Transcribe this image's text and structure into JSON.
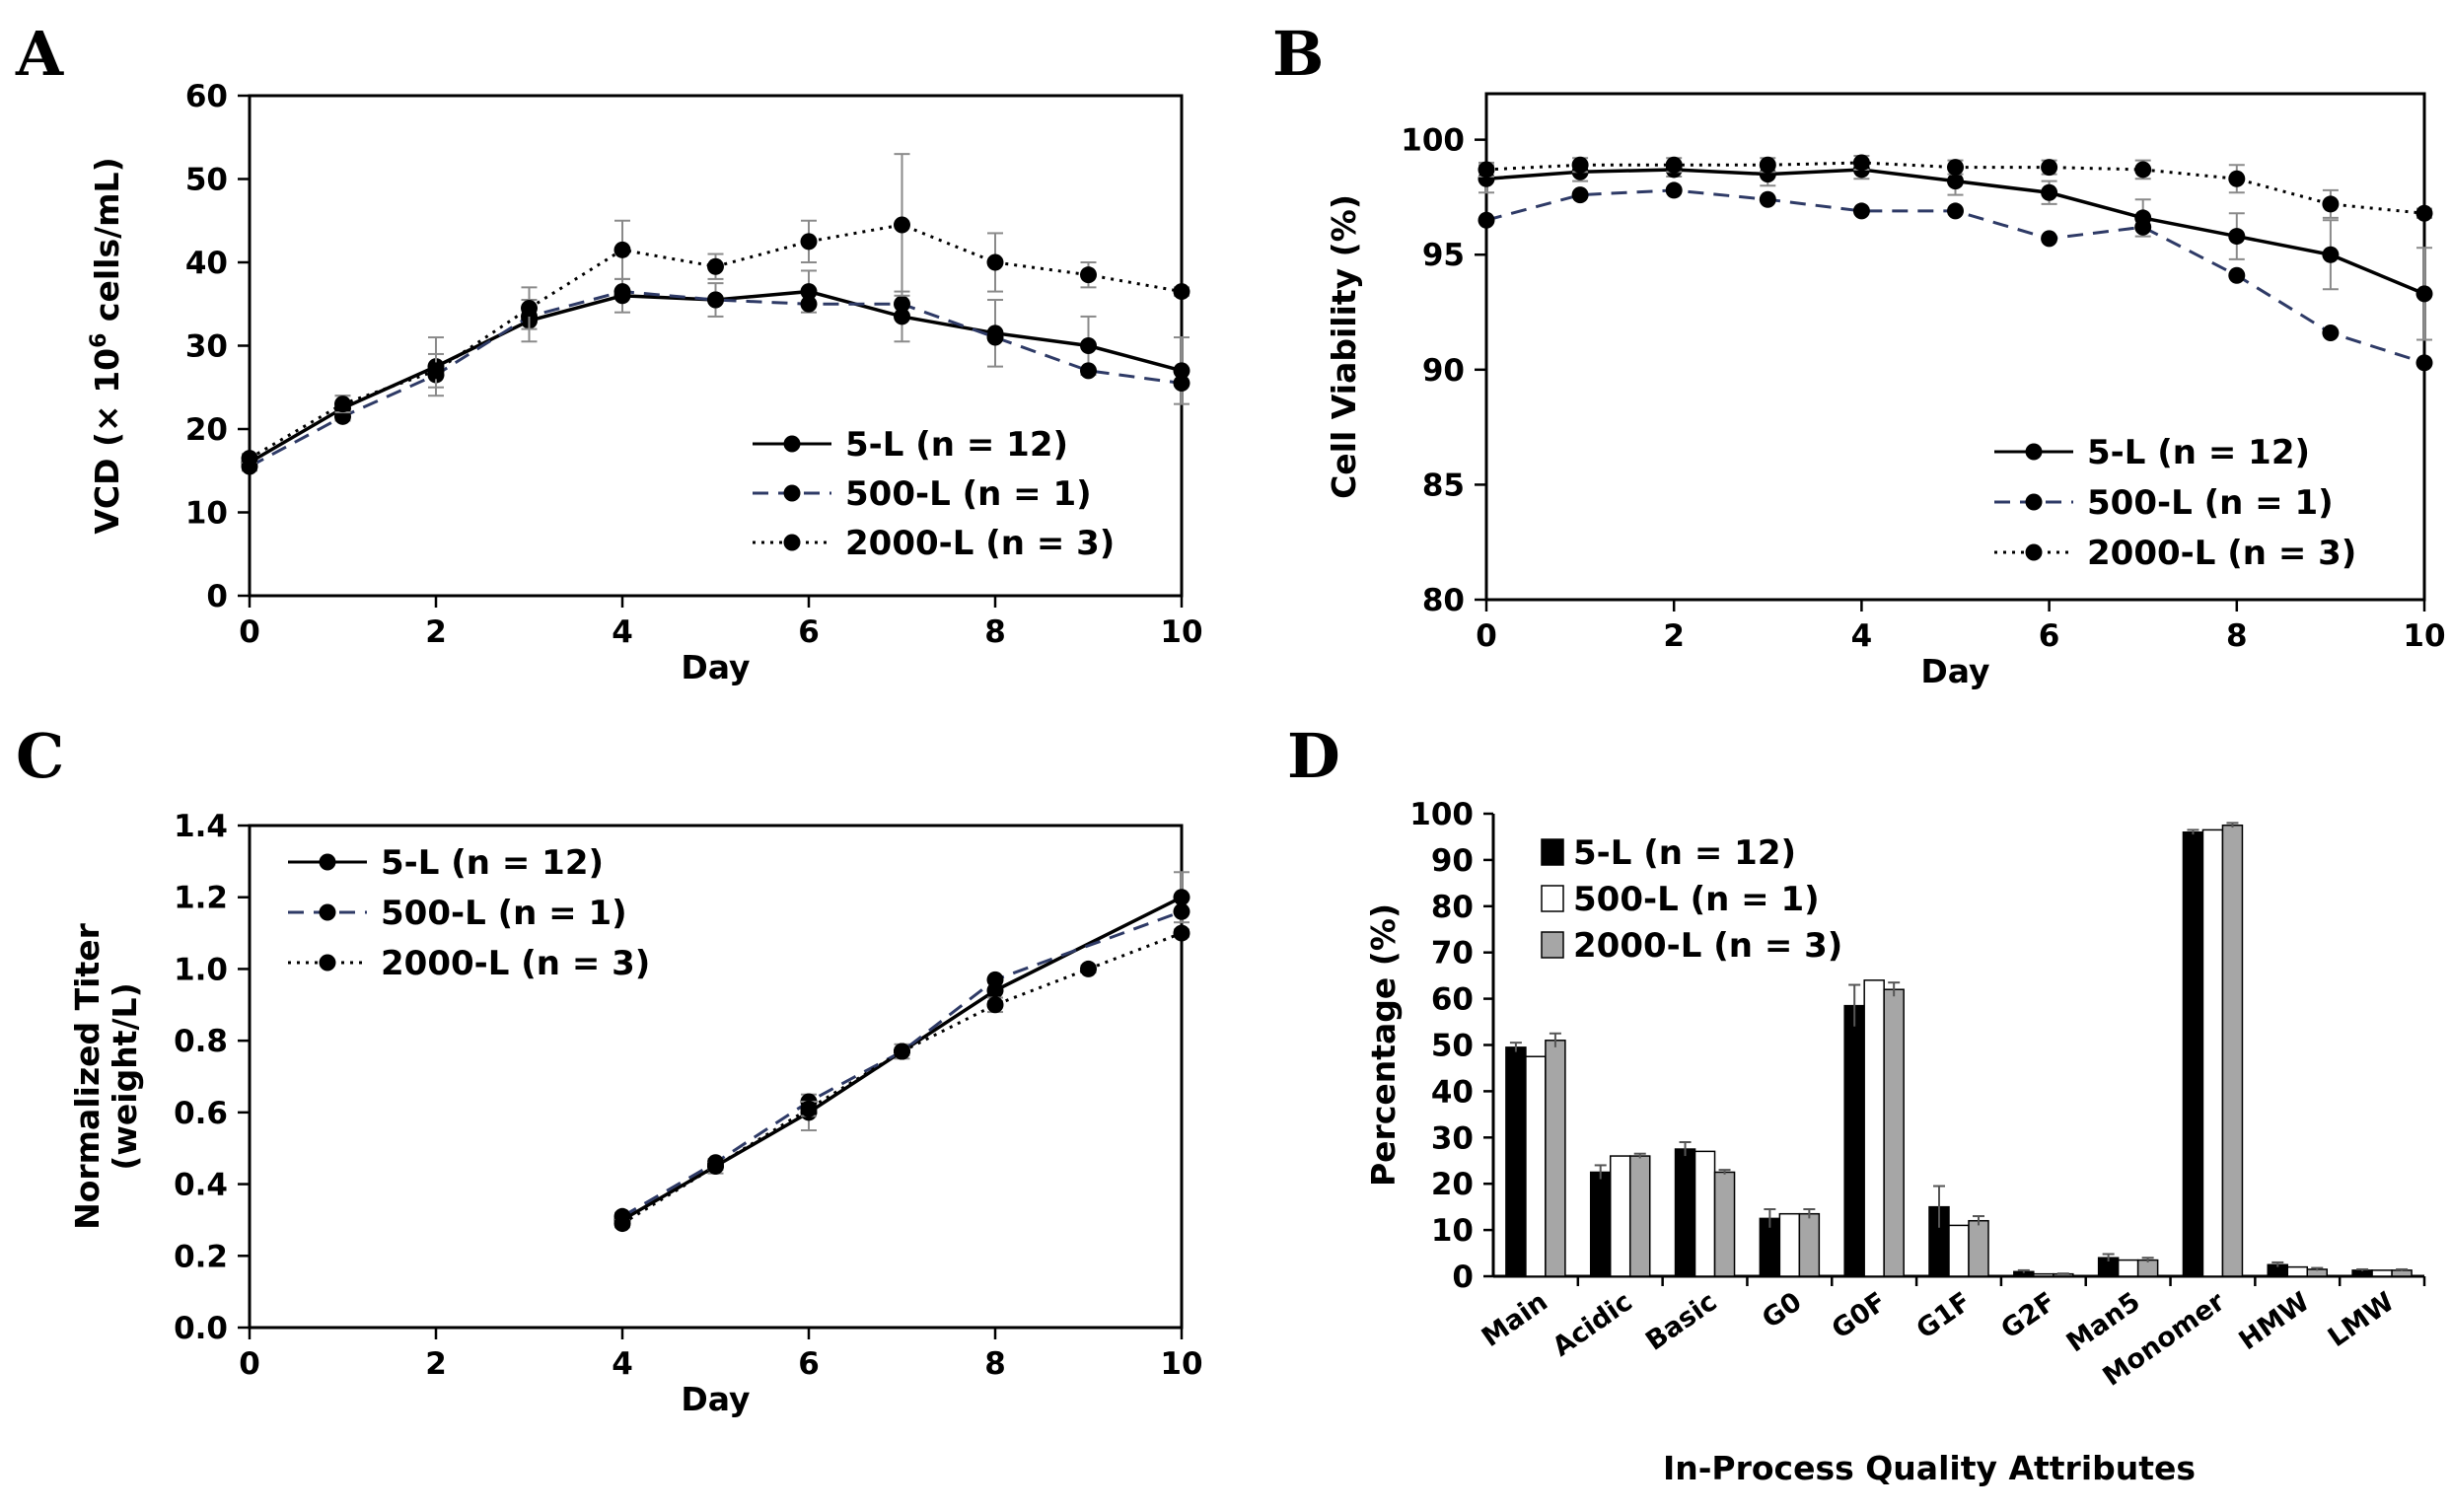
{
  "chart_data": [
    {
      "panel": "A",
      "type": "line",
      "xlabel": "Day",
      "ylabel_prefix": "VCD (× 10",
      "ylabel_sup": "6",
      "ylabel_suffix": " cells/mL)",
      "xlim": [
        0,
        10
      ],
      "ylim": [
        0,
        60
      ],
      "xticks": [
        0,
        2,
        4,
        6,
        8,
        10
      ],
      "yticks": [
        0,
        10,
        20,
        30,
        40,
        50,
        60
      ],
      "legend_position": "bottom-right",
      "series": [
        {
          "name": "5-L (n = 12)",
          "style": "solid",
          "x": [
            0,
            1,
            2,
            3,
            4,
            5,
            6,
            7,
            8,
            9,
            10
          ],
          "y": [
            16,
            22.5,
            27.5,
            33,
            36,
            35.5,
            36.5,
            33.5,
            31.5,
            30,
            27
          ],
          "err": [
            1,
            1.5,
            3.5,
            2.5,
            2,
            2,
            2.5,
            3,
            4,
            3.5,
            4
          ]
        },
        {
          "name": "500-L (n = 1)",
          "style": "dashed",
          "x": [
            0,
            1,
            2,
            3,
            4,
            5,
            6,
            7,
            8,
            9,
            10
          ],
          "y": [
            15.5,
            21.5,
            26.5,
            33.5,
            36.5,
            35.5,
            35,
            35,
            31,
            27,
            25.5
          ],
          "err": []
        },
        {
          "name": "2000-L (n = 3)",
          "style": "dotted",
          "x": [
            0,
            1,
            2,
            3,
            4,
            5,
            6,
            7,
            8,
            9,
            10
          ],
          "y": [
            16.5,
            23,
            27,
            34.5,
            41.5,
            39.5,
            42.5,
            44.5,
            40,
            38.5,
            36.5
          ],
          "err": [
            0.5,
            1,
            2,
            2.5,
            3.5,
            1.5,
            2.5,
            8.5,
            3.5,
            1.5,
            0.5
          ]
        }
      ]
    },
    {
      "panel": "B",
      "type": "line",
      "xlabel": "Day",
      "ylabel": "Cell Viability (%)",
      "xlim": [
        0,
        10
      ],
      "ylim": [
        80,
        102
      ],
      "xticks": [
        0,
        2,
        4,
        6,
        8,
        10
      ],
      "yticks": [
        80,
        85,
        90,
        95,
        100
      ],
      "legend_position": "bottom-right",
      "series": [
        {
          "name": "5-L (n = 12)",
          "style": "solid",
          "x": [
            0,
            1,
            2,
            3,
            4,
            5,
            6,
            7,
            8,
            9,
            10
          ],
          "y": [
            98.3,
            98.6,
            98.7,
            98.5,
            98.7,
            98.2,
            97.7,
            96.6,
            95.8,
            95,
            93.3
          ],
          "err": [
            0.6,
            0.4,
            0.3,
            0.5,
            0.4,
            0.6,
            0.5,
            0.8,
            1,
            1.5,
            2
          ]
        },
        {
          "name": "500-L (n = 1)",
          "style": "dashed",
          "x": [
            0,
            1,
            2,
            3,
            4,
            5,
            6,
            7,
            8,
            9,
            10
          ],
          "y": [
            96.5,
            97.6,
            97.8,
            97.4,
            96.9,
            96.9,
            95.7,
            96.2,
            94.1,
            91.6,
            90.3
          ],
          "err": []
        },
        {
          "name": "2000-L (n = 3)",
          "style": "dotted",
          "x": [
            0,
            1,
            2,
            3,
            4,
            5,
            6,
            7,
            8,
            9,
            10
          ],
          "y": [
            98.7,
            98.9,
            98.9,
            98.9,
            99,
            98.8,
            98.8,
            98.7,
            98.3,
            97.2,
            96.8
          ],
          "err": [
            0.3,
            0.3,
            0.3,
            0.3,
            0.3,
            0.3,
            0.3,
            0.4,
            0.6,
            0.6,
            0.2
          ]
        }
      ]
    },
    {
      "panel": "C",
      "type": "line",
      "xlabel": "Day",
      "ylabel_line1": "Normalized Titer",
      "ylabel_line2": "(weight/L)",
      "xlim": [
        0,
        10
      ],
      "ylim": [
        0,
        1.4
      ],
      "xticks": [
        0,
        2,
        4,
        6,
        8,
        10
      ],
      "yticks": [
        "0.0",
        "0.2",
        "0.4",
        "0.6",
        "0.8",
        "1.0",
        "1.2",
        "1.4"
      ],
      "legend_position": "top-left",
      "series": [
        {
          "name": "5-L (n = 12)",
          "style": "solid",
          "x": [
            4,
            5,
            6,
            7,
            8,
            10
          ],
          "y": [
            0.3,
            0.45,
            0.6,
            0.77,
            0.94,
            1.2
          ],
          "err": [
            0.02,
            0.02,
            0.05,
            0.02,
            0.03,
            0.07
          ]
        },
        {
          "name": "500-L (n = 1)",
          "style": "dashed",
          "x": [
            4,
            5,
            6,
            7,
            8,
            10
          ],
          "y": [
            0.31,
            0.46,
            0.63,
            0.77,
            0.97,
            1.16
          ],
          "err": []
        },
        {
          "name": "2000-L (n = 3)",
          "style": "dotted",
          "x": [
            4,
            5,
            6,
            7,
            8,
            9,
            10
          ],
          "y": [
            0.29,
            0.45,
            0.61,
            0.77,
            0.9,
            1.0,
            1.1
          ],
          "err": [
            0.01,
            0.01,
            0.02,
            0.01,
            0.02,
            0.01,
            0.01
          ]
        }
      ]
    },
    {
      "panel": "D",
      "type": "bar",
      "xlabel": "In-Process Quality Attributes",
      "ylabel": "Percentage (%)",
      "ylim": [
        0,
        100
      ],
      "yticks": [
        0,
        10,
        20,
        30,
        40,
        50,
        60,
        70,
        80,
        90,
        100
      ],
      "legend_position": "top-left",
      "categories": [
        "Main",
        "Acidic",
        "Basic",
        "G0",
        "G0F",
        "G1F",
        "G2F",
        "Man5",
        "Monomer",
        "HMW",
        "LMW"
      ],
      "series": [
        {
          "name": "5-L (n = 12)",
          "color": "#000000",
          "values": [
            49.5,
            22.5,
            27.5,
            12.5,
            58.5,
            15,
            1,
            4,
            96,
            2.5,
            1.3
          ],
          "err": [
            1,
            1.5,
            1.5,
            2,
            4.5,
            4.5,
            0.3,
            0.8,
            0.5,
            0.5,
            0.2
          ]
        },
        {
          "name": "500-L (n = 1)",
          "color": "#ffffff",
          "values": [
            47.5,
            26,
            27,
            13.5,
            64,
            11,
            0.5,
            3.5,
            96.5,
            2,
            1.3
          ],
          "err": []
        },
        {
          "name": "2000-L (n = 3)",
          "color": "#a6a6a6",
          "values": [
            51,
            26,
            22.5,
            13.5,
            62,
            12,
            0.5,
            3.5,
            97.5,
            1.5,
            1.3
          ],
          "err": [
            1.5,
            0.5,
            0.5,
            1,
            1.5,
            1,
            0.1,
            0.5,
            0.5,
            0.3,
            0.2
          ]
        }
      ]
    }
  ]
}
